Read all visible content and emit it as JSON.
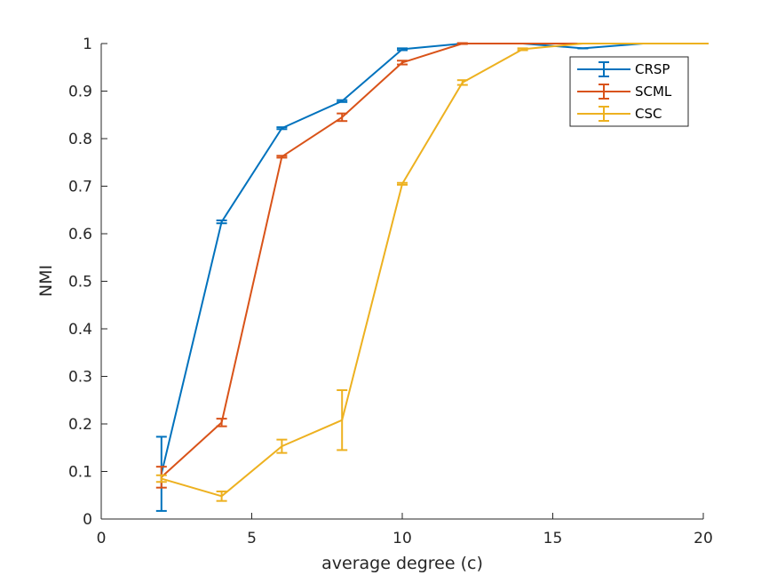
{
  "chart_data": {
    "type": "line",
    "title": "",
    "xlabel": "average degree (c)",
    "ylabel": "NMI",
    "xlim": [
      0,
      20
    ],
    "ylim": [
      0,
      1
    ],
    "xticks": [
      0,
      5,
      10,
      15,
      20
    ],
    "xtick_labels": [
      "0",
      "5",
      "10",
      "15",
      "20"
    ],
    "yticks": [
      0,
      0.1,
      0.2,
      0.3,
      0.4,
      0.5,
      0.6,
      0.7,
      0.8,
      0.9,
      1
    ],
    "ytick_labels": [
      "0",
      "0.1",
      "0.2",
      "0.3",
      "0.4",
      "0.5",
      "0.6",
      "0.7",
      "0.8",
      "0.9",
      "1"
    ],
    "grid": false,
    "legend_position": "top-right",
    "series": [
      {
        "name": "CRSP",
        "color": "#0072BD",
        "x": [
          2,
          4,
          6,
          8,
          10,
          12,
          14,
          16,
          18,
          20
        ],
        "y": [
          0.095,
          0.625,
          0.822,
          0.879,
          0.988,
          1.0,
          1.0,
          0.99,
          1.0,
          1.0
        ],
        "err": [
          0.078,
          0.003,
          0.002,
          0.002,
          0.002,
          0.0,
          0.0,
          0.0,
          0.0,
          0.0
        ]
      },
      {
        "name": "SCML",
        "color": "#D95319",
        "x": [
          2,
          4,
          6,
          8,
          10,
          12,
          14,
          16,
          18,
          20
        ],
        "y": [
          0.088,
          0.203,
          0.762,
          0.845,
          0.96,
          1.0,
          1.0,
          1.0,
          1.0,
          1.0
        ],
        "err": [
          0.022,
          0.008,
          0.002,
          0.008,
          0.004,
          0.001,
          0.0,
          0.0,
          0.0,
          0.0
        ]
      },
      {
        "name": "CSC",
        "color": "#EDB120",
        "x": [
          2,
          4,
          6,
          8,
          10,
          12,
          14,
          16,
          18,
          20
        ],
        "y": [
          0.085,
          0.048,
          0.153,
          0.208,
          0.705,
          0.918,
          0.988,
          1.0,
          1.0,
          1.0
        ],
        "err": [
          0.007,
          0.01,
          0.014,
          0.063,
          0.002,
          0.005,
          0.002,
          0.0,
          0.0,
          0.0
        ]
      }
    ]
  }
}
